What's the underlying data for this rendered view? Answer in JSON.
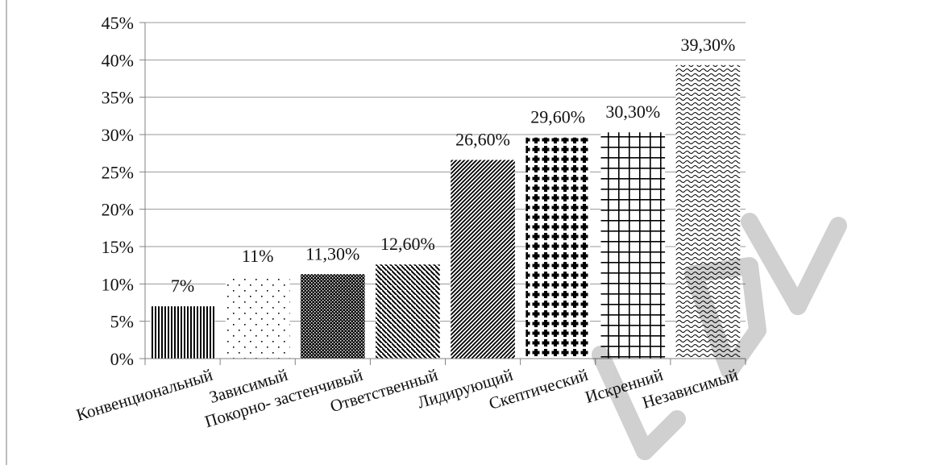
{
  "chart_data": {
    "type": "bar",
    "title": "",
    "xlabel": "",
    "ylabel": "",
    "ylim": [
      0,
      45
    ],
    "yticks": [
      "0%",
      "5%",
      "10%",
      "15%",
      "20%",
      "25%",
      "30%",
      "35%",
      "40%",
      "45%"
    ],
    "grid": true,
    "legend": "none",
    "categories": [
      "Конвенциональный",
      "Зависимый",
      "Покорно- застенчивый",
      "Ответственный",
      "Лидирующий",
      "Скептический",
      "Искренний",
      "Независимый"
    ],
    "values": [
      7,
      11,
      11.3,
      12.6,
      26.6,
      29.6,
      30.3,
      39.3
    ],
    "data_labels": [
      "7%",
      "11%",
      "11,30%",
      "12,60%",
      "26,60%",
      "29,60%",
      "30,30%",
      "39,30%"
    ],
    "patterns": [
      "vertical-stripes",
      "sparse-dots",
      "dense-checker",
      "diagonal-down-stripes",
      "diagonal-up-stripes",
      "plus-dots",
      "grid",
      "waves"
    ]
  },
  "colors": {
    "bar_ink": "#000000",
    "grid": "#9a9a9a",
    "axis": "#808080",
    "watermark": "#000000"
  }
}
